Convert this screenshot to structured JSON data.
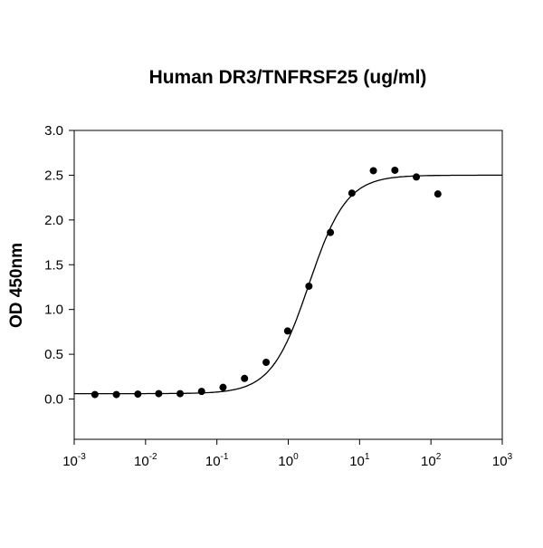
{
  "chart_data": {
    "type": "scatter",
    "title": "Human DR3/TNFRSF25 (ug/ml)",
    "xlabel": "",
    "ylabel": "OD 450nm",
    "xscale": "log",
    "xlim": [
      0.001,
      1000
    ],
    "ylim": [
      -0.45,
      3.0
    ],
    "grid": false,
    "x_ticks": [
      {
        "base": "10",
        "exp": "-3",
        "value": 0.001
      },
      {
        "base": "10",
        "exp": "-2",
        "value": 0.01
      },
      {
        "base": "10",
        "exp": "-1",
        "value": 0.1
      },
      {
        "base": "10",
        "exp": "0",
        "value": 1
      },
      {
        "base": "10",
        "exp": "1",
        "value": 10
      },
      {
        "base": "10",
        "exp": "2",
        "value": 100
      },
      {
        "base": "10",
        "exp": "3",
        "value": 1000
      }
    ],
    "y_ticks": [
      "0.0",
      "0.5",
      "1.0",
      "1.5",
      "2.0",
      "2.5",
      "3.0"
    ],
    "points": {
      "x": [
        0.00195,
        0.0039,
        0.0078,
        0.0153,
        0.0305,
        0.061,
        0.122,
        0.244,
        0.49,
        0.98,
        1.95,
        3.9,
        7.8,
        15.6,
        31.25,
        62.5,
        125
      ],
      "y": [
        0.05,
        0.05,
        0.055,
        0.06,
        0.06,
        0.085,
        0.13,
        0.23,
        0.41,
        0.76,
        1.26,
        1.86,
        2.3,
        2.55,
        2.555,
        2.48,
        2.29
      ]
    },
    "fit_curve": {
      "model": "4PL",
      "bottom": 0.06,
      "top": 2.5,
      "ec50": 1.95,
      "hill": 1.65
    },
    "colors": {
      "points": "#000000",
      "curve": "#000000",
      "axes": "#000000"
    }
  }
}
